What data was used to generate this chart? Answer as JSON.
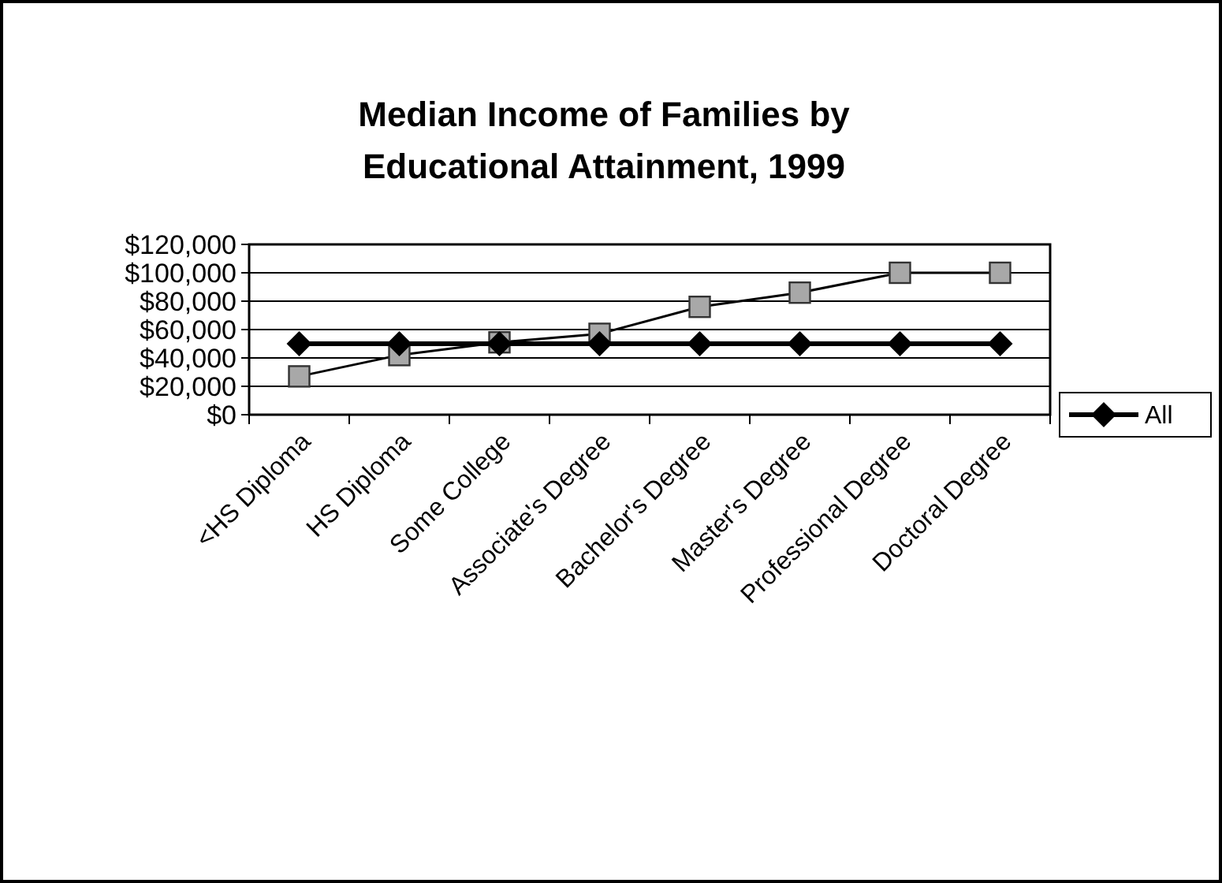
{
  "chart_data": {
    "type": "line",
    "title": "Median Income of Families by Educational Attainment, 1999",
    "categories": [
      "<HS Diploma",
      "HS Diploma",
      "Some College",
      "Associate's Degree",
      "Bachelor's Degree",
      "Master's Degree",
      "Professional Degree",
      "Doctoral Degree"
    ],
    "series": [
      {
        "name": "All",
        "color": "#000000",
        "marker": "diamond",
        "values": [
          50000,
          50000,
          50000,
          50000,
          50000,
          50000,
          50000,
          50000
        ]
      },
      {
        "color": "#a8a8a8",
        "marker": "square",
        "values": [
          27000,
          42000,
          51000,
          57000,
          76000,
          86000,
          100000,
          100000
        ]
      }
    ],
    "ylim": [
      0,
      120000
    ],
    "yticks": [
      {
        "value": 0,
        "label": "$0"
      },
      {
        "value": 20000,
        "label": "$20,000"
      },
      {
        "value": 40000,
        "label": "$40,000"
      },
      {
        "value": 60000,
        "label": "$60,000"
      },
      {
        "value": 80000,
        "label": "$80,000"
      },
      {
        "value": 100000,
        "label": "$100,000"
      },
      {
        "value": 120000,
        "label": "$120,000"
      }
    ],
    "grid": "y",
    "legend": "right"
  }
}
